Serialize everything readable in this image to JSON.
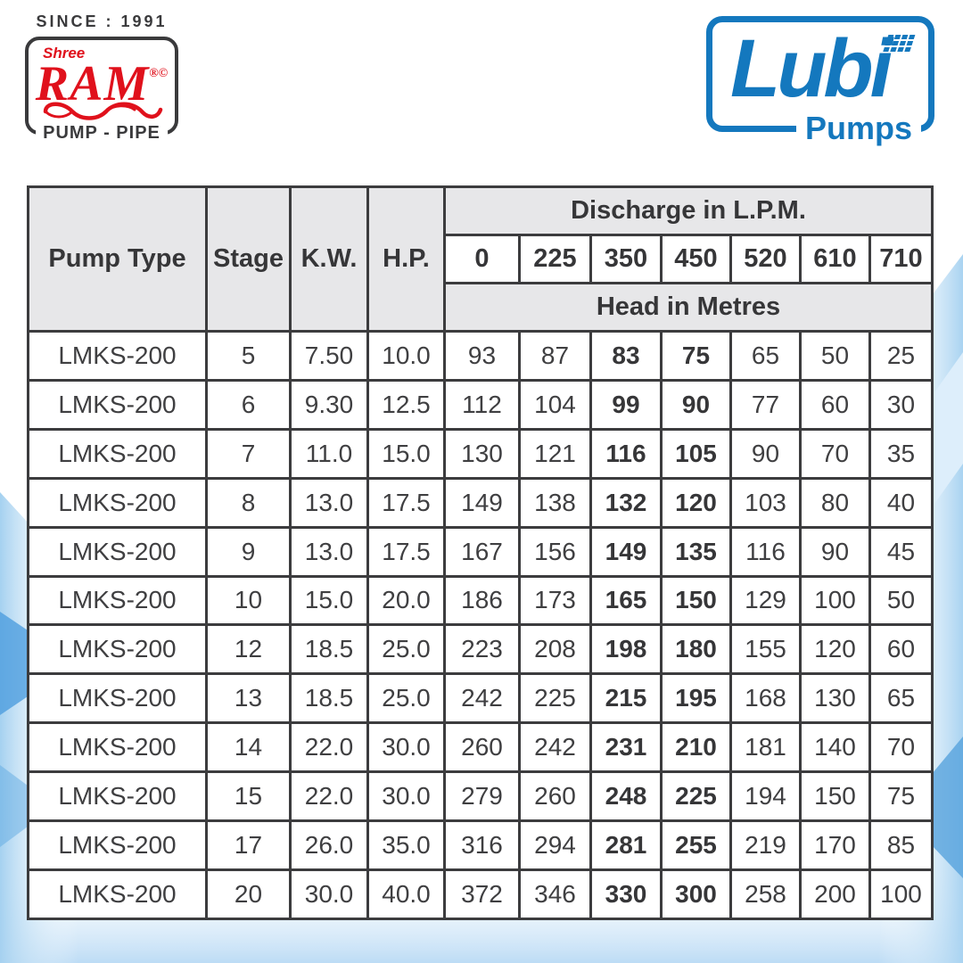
{
  "branding": {
    "shree_ram": {
      "since_text": "SINCE : 1991",
      "shree": "Shree",
      "name": "RAM",
      "marks": "®©",
      "pump_pipe": "PUMP - PIPE",
      "red": "#e0111c",
      "dark": "#3a3a3c"
    },
    "lubi": {
      "name": "Lubi",
      "sub": "Pumps",
      "blue": "#1478be"
    }
  },
  "table": {
    "headers": {
      "pump_type": "Pump Type",
      "stage": "Stage",
      "kw": "K.W.",
      "hp": "H.P.",
      "discharge_title": "Discharge in L.P.M.",
      "discharge_values": [
        "0",
        "225",
        "350",
        "450",
        "520",
        "610",
        "710"
      ],
      "head_title": "Head in Metres"
    },
    "bold_head_columns": [
      2,
      3
    ],
    "colors": {
      "header_bg": "#e7e7e9",
      "border": "#3c3c3e",
      "text": "#3f3f41"
    },
    "rows": [
      {
        "pump_type": "LMKS-200",
        "stage": "5",
        "kw": "7.50",
        "hp": "10.0",
        "heads": [
          "93",
          "87",
          "83",
          "75",
          "65",
          "50",
          "25"
        ]
      },
      {
        "pump_type": "LMKS-200",
        "stage": "6",
        "kw": "9.30",
        "hp": "12.5",
        "heads": [
          "112",
          "104",
          "99",
          "90",
          "77",
          "60",
          "30"
        ]
      },
      {
        "pump_type": "LMKS-200",
        "stage": "7",
        "kw": "11.0",
        "hp": "15.0",
        "heads": [
          "130",
          "121",
          "116",
          "105",
          "90",
          "70",
          "35"
        ]
      },
      {
        "pump_type": "LMKS-200",
        "stage": "8",
        "kw": "13.0",
        "hp": "17.5",
        "heads": [
          "149",
          "138",
          "132",
          "120",
          "103",
          "80",
          "40"
        ]
      },
      {
        "pump_type": "LMKS-200",
        "stage": "9",
        "kw": "13.0",
        "hp": "17.5",
        "heads": [
          "167",
          "156",
          "149",
          "135",
          "116",
          "90",
          "45"
        ]
      },
      {
        "pump_type": "LMKS-200",
        "stage": "10",
        "kw": "15.0",
        "hp": "20.0",
        "heads": [
          "186",
          "173",
          "165",
          "150",
          "129",
          "100",
          "50"
        ]
      },
      {
        "pump_type": "LMKS-200",
        "stage": "12",
        "kw": "18.5",
        "hp": "25.0",
        "heads": [
          "223",
          "208",
          "198",
          "180",
          "155",
          "120",
          "60"
        ]
      },
      {
        "pump_type": "LMKS-200",
        "stage": "13",
        "kw": "18.5",
        "hp": "25.0",
        "heads": [
          "242",
          "225",
          "215",
          "195",
          "168",
          "130",
          "65"
        ]
      },
      {
        "pump_type": "LMKS-200",
        "stage": "14",
        "kw": "22.0",
        "hp": "30.0",
        "heads": [
          "260",
          "242",
          "231",
          "210",
          "181",
          "140",
          "70"
        ]
      },
      {
        "pump_type": "LMKS-200",
        "stage": "15",
        "kw": "22.0",
        "hp": "30.0",
        "heads": [
          "279",
          "260",
          "248",
          "225",
          "194",
          "150",
          "75"
        ]
      },
      {
        "pump_type": "LMKS-200",
        "stage": "17",
        "kw": "26.0",
        "hp": "35.0",
        "heads": [
          "316",
          "294",
          "281",
          "255",
          "219",
          "170",
          "85"
        ]
      },
      {
        "pump_type": "LMKS-200",
        "stage": "20",
        "kw": "30.0",
        "hp": "40.0",
        "heads": [
          "372",
          "346",
          "330",
          "300",
          "258",
          "200",
          "100"
        ]
      }
    ]
  }
}
